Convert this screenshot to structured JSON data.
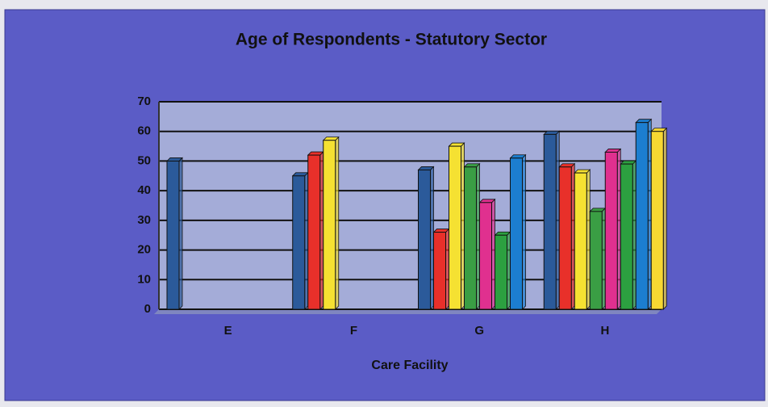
{
  "chart_data": {
    "type": "bar",
    "title": "Age of Respondents - Statutory Sector",
    "x_label": "Care Facility",
    "categories": [
      "E",
      "F",
      "G",
      "H"
    ],
    "series": [
      {
        "color": "#2b5a9a",
        "values": [
          50,
          45,
          47,
          59
        ]
      },
      {
        "color": "#e8302a",
        "values": [
          null,
          52,
          26,
          48
        ]
      },
      {
        "color": "#f5e132",
        "values": [
          null,
          57,
          55,
          46
        ]
      },
      {
        "color": "#3a9e44",
        "values": [
          null,
          null,
          48,
          33
        ]
      },
      {
        "color": "#e0308f",
        "values": [
          null,
          null,
          36,
          53
        ]
      },
      {
        "color": "#2ca040",
        "values": [
          null,
          null,
          25,
          49
        ]
      },
      {
        "color": "#1c7ed0",
        "values": [
          null,
          null,
          51,
          63
        ]
      },
      {
        "color": "#f7d832",
        "values": [
          null,
          null,
          null,
          60
        ]
      }
    ],
    "ylim": [
      0,
      70
    ],
    "yticks": [
      0,
      10,
      20,
      30,
      40,
      50,
      60,
      70
    ],
    "grid": true
  }
}
